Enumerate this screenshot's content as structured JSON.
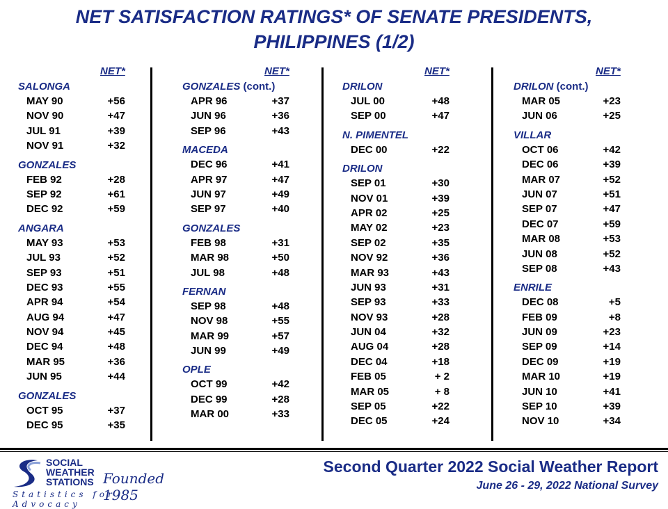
{
  "title": {
    "line1": "NET SATISFACTION RATINGS* OF SENATE PRESIDENTS,",
    "line2": "PHILIPPINES (1/2)"
  },
  "net_header": "NET*",
  "columns": [
    {
      "groups": [
        {
          "name": "SALONGA",
          "rows": [
            [
              "MAY 90",
              "+56"
            ],
            [
              "NOV 90",
              "+47"
            ],
            [
              "JUL 91",
              "+39"
            ],
            [
              "NOV 91",
              "+32"
            ]
          ]
        },
        {
          "name": "GONZALES",
          "rows": [
            [
              "FEB 92",
              "+28"
            ],
            [
              "SEP 92",
              "+61"
            ],
            [
              "DEC 92",
              "+59"
            ]
          ]
        },
        {
          "name": "ANGARA",
          "rows": [
            [
              "MAY 93",
              "+53"
            ],
            [
              "JUL 93",
              "+52"
            ],
            [
              "SEP 93",
              "+51"
            ],
            [
              "DEC 93",
              "+55"
            ],
            [
              "APR 94",
              "+54"
            ],
            [
              "AUG 94",
              "+47"
            ],
            [
              "NOV 94",
              "+45"
            ],
            [
              "DEC 94",
              "+48"
            ],
            [
              "MAR 95",
              "+36"
            ],
            [
              "JUN 95",
              "+44"
            ]
          ]
        },
        {
          "name": "GONZALES",
          "rows": [
            [
              "OCT 95",
              "+37"
            ],
            [
              "DEC 95",
              "+35"
            ]
          ]
        }
      ]
    },
    {
      "groups": [
        {
          "name": "GONZALES",
          "cont": " (cont.)",
          "rows": [
            [
              "APR 96",
              "+37"
            ],
            [
              "JUN 96",
              "+36"
            ],
            [
              "SEP 96",
              "+43"
            ]
          ]
        },
        {
          "name": "MACEDA",
          "rows": [
            [
              "DEC 96",
              "+41"
            ],
            [
              "APR 97",
              "+47"
            ],
            [
              "JUN 97",
              "+49"
            ],
            [
              "SEP 97",
              "+40"
            ]
          ]
        },
        {
          "name": "GONZALES",
          "rows": [
            [
              "FEB 98",
              "+31"
            ],
            [
              "MAR 98",
              "+50"
            ],
            [
              "JUL 98",
              "+48"
            ]
          ]
        },
        {
          "name": "FERNAN",
          "rows": [
            [
              "SEP 98",
              "+48"
            ],
            [
              "NOV 98",
              "+55"
            ],
            [
              "MAR 99",
              "+57"
            ],
            [
              "JUN 99",
              "+49"
            ]
          ]
        },
        {
          "name": "OPLE",
          "rows": [
            [
              "OCT 99",
              "+42"
            ],
            [
              "DEC 99",
              "+28"
            ],
            [
              "MAR 00",
              "+33"
            ]
          ]
        }
      ]
    },
    {
      "groups": [
        {
          "name": "DRILON",
          "rows": [
            [
              "JUL 00",
              "+48"
            ],
            [
              "SEP 00",
              "+47"
            ]
          ]
        },
        {
          "name": "N. PIMENTEL",
          "rows": [
            [
              "DEC 00",
              "+22"
            ]
          ]
        },
        {
          "name": "DRILON",
          "rows": [
            [
              "SEP 01",
              "+30"
            ],
            [
              "NOV 01",
              "+39"
            ],
            [
              "APR 02",
              "+25"
            ],
            [
              "MAY 02",
              "+23"
            ],
            [
              "SEP 02",
              "+35"
            ],
            [
              "NOV 92",
              "+36"
            ],
            [
              "MAR 93",
              "+43"
            ],
            [
              "JUN 93",
              "+31"
            ],
            [
              "SEP 93",
              "+33"
            ],
            [
              "NOV 93",
              "+28"
            ],
            [
              "JUN 04",
              "+32"
            ],
            [
              "AUG 04",
              "+28"
            ],
            [
              "DEC 04",
              "+18"
            ],
            [
              "FEB 05",
              "+ 2"
            ],
            [
              "MAR 05",
              "+ 8"
            ],
            [
              "SEP 05",
              "+22"
            ],
            [
              "DEC 05",
              "+24"
            ]
          ]
        }
      ]
    },
    {
      "groups": [
        {
          "name": "DRILON",
          "cont": " (cont.)",
          "rows": [
            [
              "MAR 05",
              "+23"
            ],
            [
              "JUN 06",
              "+25"
            ]
          ]
        },
        {
          "name": "VILLAR",
          "rows": [
            [
              "OCT 06",
              "+42"
            ],
            [
              "DEC 06",
              "+39"
            ],
            [
              "MAR 07",
              "+52"
            ],
            [
              "JUN 07",
              "+51"
            ],
            [
              "SEP 07",
              "+47"
            ],
            [
              "DEC 07",
              "+59"
            ],
            [
              "MAR 08",
              "+53"
            ],
            [
              "JUN 08",
              "+52"
            ],
            [
              "SEP 08",
              "+43"
            ]
          ]
        },
        {
          "name": "ENRILE",
          "rows": [
            [
              "DEC 08",
              "+5"
            ],
            [
              "FEB 09",
              "+8"
            ],
            [
              "JUN 09",
              "+23"
            ],
            [
              "SEP 09",
              "+14"
            ],
            [
              "DEC 09",
              "+19"
            ],
            [
              "MAR 10",
              "+19"
            ],
            [
              "JUN 10",
              "+41"
            ],
            [
              "SEP 10",
              "+39"
            ],
            [
              "NOV 10",
              "+34"
            ]
          ]
        }
      ]
    }
  ],
  "footer": {
    "logo": {
      "line1": "SOCIAL",
      "line2": "WEATHER",
      "line3": "STATIONS",
      "founded": "Founded 1985",
      "tagline": "Statistics for Advocacy"
    },
    "report_title": "Second Quarter 2022 Social Weather Report",
    "report_subtitle": "June 26 - 29, 2022 National Survey"
  },
  "colors": {
    "accent": "#1a2c86",
    "text": "#000000"
  }
}
